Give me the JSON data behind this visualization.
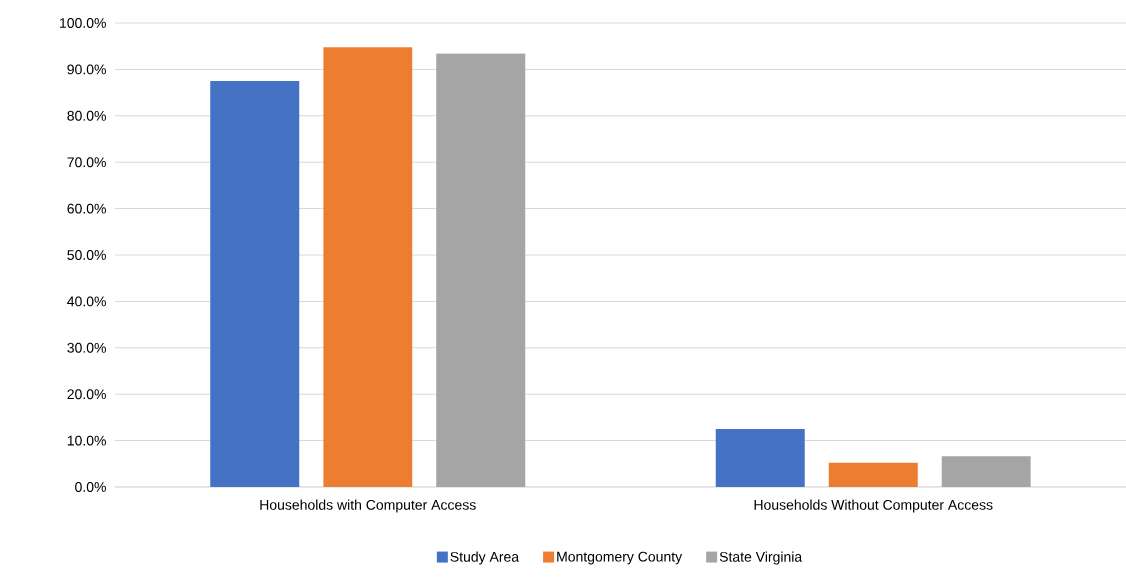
{
  "chart_data": {
    "type": "bar",
    "categories": [
      "Households with Computer Access",
      "Households Without Computer Access"
    ],
    "series": [
      {
        "name": "Study Area",
        "color": "#4472c4",
        "values": [
          87.5,
          12.5
        ]
      },
      {
        "name": "Montgomery County",
        "color": "#ed7d31",
        "values": [
          94.8,
          5.2
        ]
      },
      {
        "name": "State Virginia",
        "color": "#a5a5a5",
        "values": [
          93.4,
          6.6
        ]
      }
    ],
    "ylim": [
      0,
      100
    ],
    "yticks": [
      {
        "value": 0,
        "label": "0.0%"
      },
      {
        "value": 10,
        "label": "10.0%"
      },
      {
        "value": 20,
        "label": "20.0%"
      },
      {
        "value": 30,
        "label": "30.0%"
      },
      {
        "value": 40,
        "label": "40.0%"
      },
      {
        "value": 50,
        "label": "50.0%"
      },
      {
        "value": 60,
        "label": "60.0%"
      },
      {
        "value": 70,
        "label": "70.0%"
      },
      {
        "value": 80,
        "label": "80.0%"
      },
      {
        "value": 90,
        "label": "90.0%"
      },
      {
        "value": 100,
        "label": "100.0%"
      }
    ],
    "grid": "y",
    "legend": "bottom"
  }
}
